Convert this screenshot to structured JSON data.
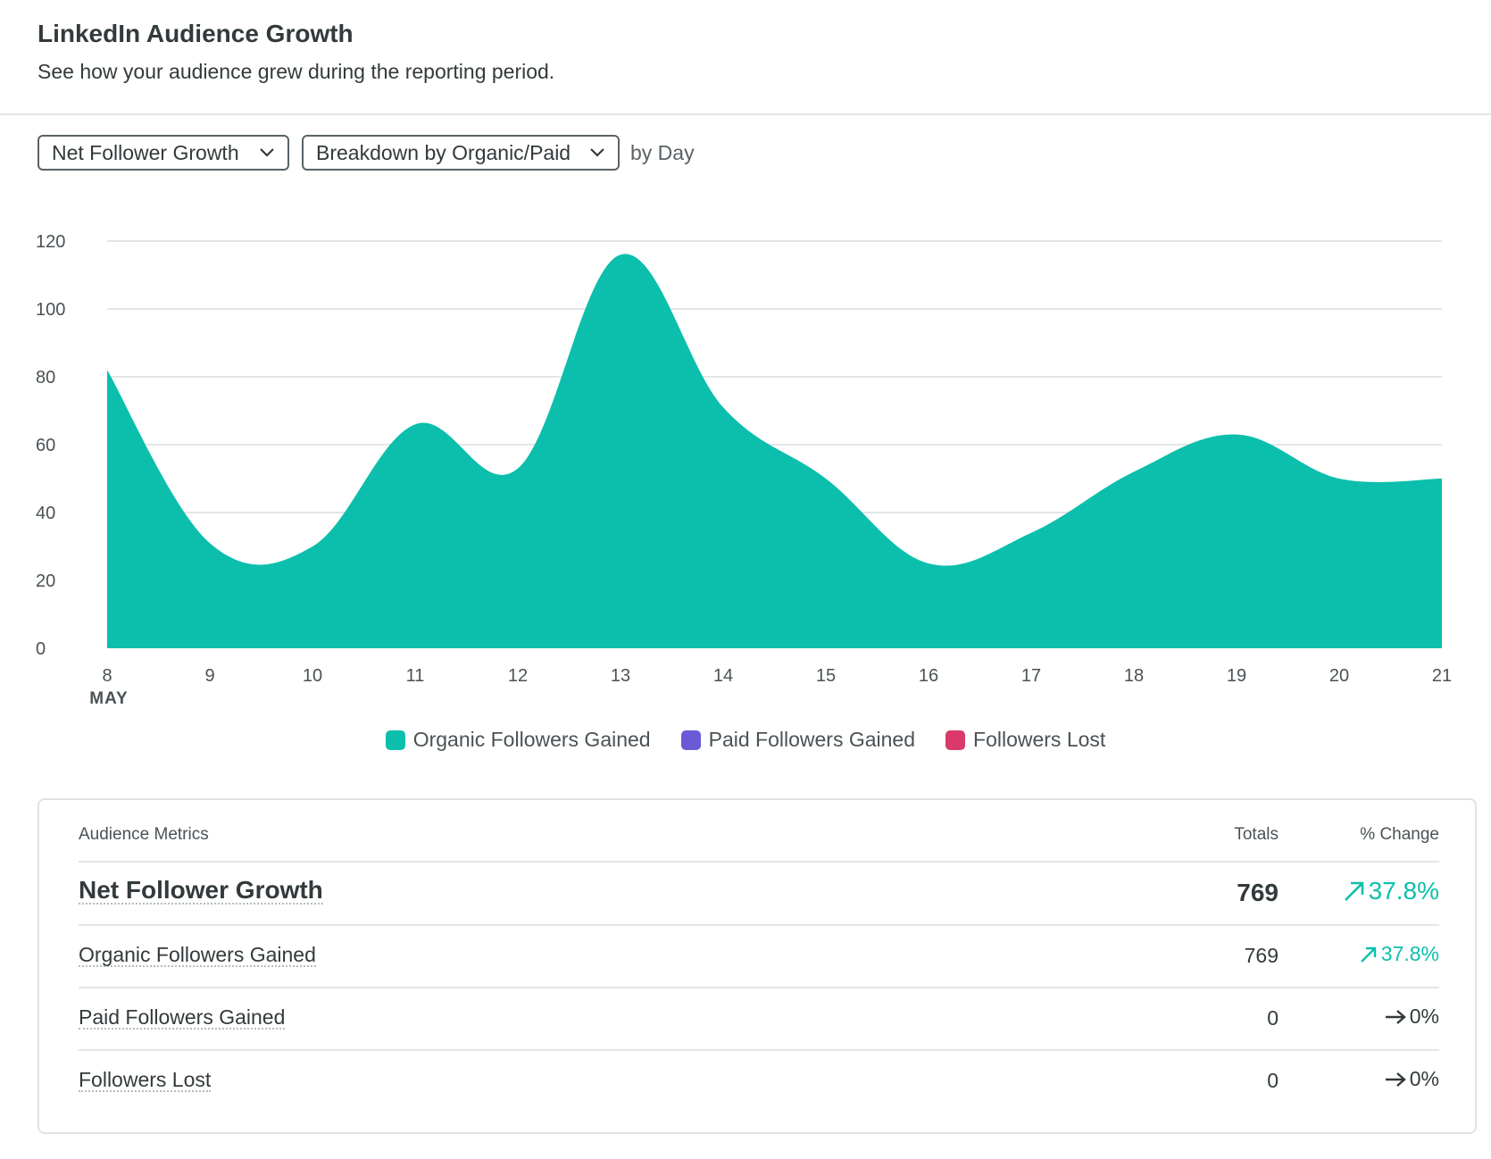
{
  "header": {
    "title": "LinkedIn Audience Growth",
    "subtitle": "See how your audience grew during the reporting period."
  },
  "controls": {
    "metric_selected": "Net Follower Growth",
    "breakdown_selected": "Breakdown by Organic/Paid",
    "period_text": "by Day"
  },
  "chart_data": {
    "type": "area",
    "x": [
      8,
      9,
      10,
      11,
      12,
      13,
      14,
      15,
      16,
      17,
      18,
      19,
      20,
      21
    ],
    "x_sublabel": "MAY",
    "ylim": [
      0,
      120
    ],
    "yticks": [
      0,
      20,
      40,
      60,
      80,
      100,
      120
    ],
    "grid": true,
    "legend_position": "bottom",
    "series": [
      {
        "name": "Organic Followers Gained",
        "color": "#0bbfac",
        "values": [
          82,
          31,
          30,
          66,
          53,
          116,
          71,
          50,
          25,
          34,
          52,
          63,
          50,
          50
        ]
      },
      {
        "name": "Paid Followers Gained",
        "color": "#6b5ad6",
        "values": [
          0,
          0,
          0,
          0,
          0,
          0,
          0,
          0,
          0,
          0,
          0,
          0,
          0,
          0
        ]
      },
      {
        "name": "Followers Lost",
        "color": "#d93a6b",
        "values": [
          0,
          0,
          0,
          0,
          0,
          0,
          0,
          0,
          0,
          0,
          0,
          0,
          0,
          0
        ]
      }
    ]
  },
  "legend": [
    {
      "label": "Organic Followers Gained",
      "color": "#0bbfac"
    },
    {
      "label": "Paid Followers Gained",
      "color": "#6b5ad6"
    },
    {
      "label": "Followers Lost",
      "color": "#d93a6b"
    }
  ],
  "table": {
    "col_metric": "Audience Metrics",
    "col_totals": "Totals",
    "col_change": "% Change",
    "rows": [
      {
        "name": "Net Follower Growth",
        "total": "769",
        "change": "37.8%",
        "trend": "up"
      },
      {
        "name": "Organic Followers Gained",
        "total": "769",
        "change": "37.8%",
        "trend": "up"
      },
      {
        "name": "Paid Followers Gained",
        "total": "0",
        "change": "0%",
        "trend": "flat"
      },
      {
        "name": "Followers Lost",
        "total": "0",
        "change": "0%",
        "trend": "flat"
      }
    ]
  },
  "colors": {
    "accent": "#0bbfac",
    "text": "#333a3c",
    "grid": "#e3e5e6"
  }
}
